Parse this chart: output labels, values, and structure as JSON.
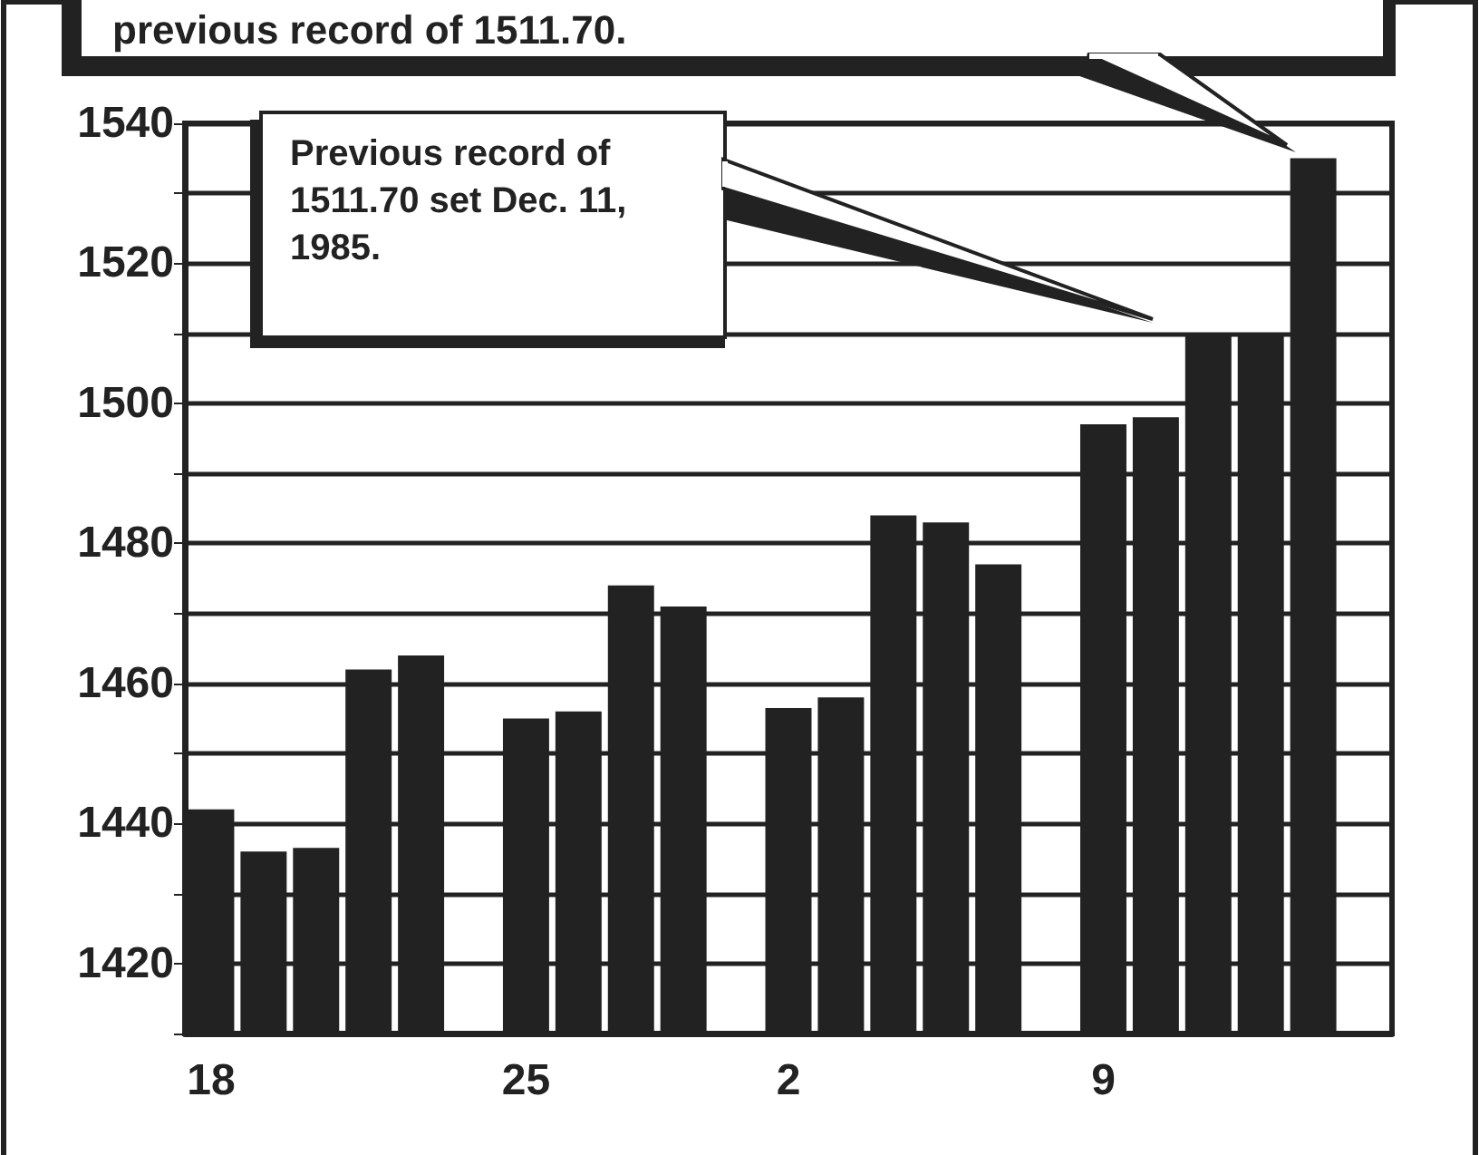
{
  "chart_data": {
    "type": "bar",
    "categories": [
      "18",
      null,
      null,
      null,
      null,
      null,
      "25",
      null,
      null,
      null,
      null,
      "2",
      null,
      null,
      null,
      null,
      null,
      "9",
      null,
      null,
      null,
      null,
      null
    ],
    "values": [
      1442,
      1436,
      1436.5,
      1462,
      1464,
      null,
      1455,
      1456,
      1474,
      1471,
      null,
      1456.5,
      1458,
      1484,
      1483,
      1477,
      null,
      1497,
      1498,
      1510,
      1510,
      1535,
      null
    ],
    "color": "#222222",
    "ylim": [
      1410,
      1540
    ],
    "yticks": [
      {
        "value": 1410,
        "label": null
      },
      1420,
      {
        "value": 1430,
        "label": null
      },
      1440,
      {
        "value": 1450,
        "label": null
      },
      1460,
      {
        "value": 1470,
        "label": null
      },
      1480,
      {
        "value": 1490,
        "label": null
      },
      1500,
      {
        "value": 1510,
        "label": null
      },
      1520,
      {
        "value": 1530,
        "label": null
      },
      1540
    ],
    "grid": "y",
    "annotations": [
      "previous record of 1511.70.",
      "Previous record of 1511.70 set Dec. 11, 1985."
    ]
  }
}
